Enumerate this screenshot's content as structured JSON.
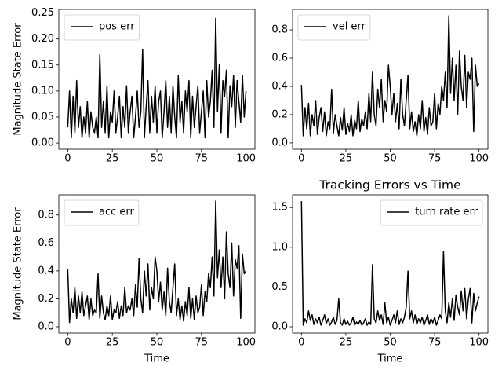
{
  "chart_data": [
    {
      "type": "line",
      "ylabel": "Magnitude State Error",
      "legend": "upper left",
      "xlim": [
        -5,
        105
      ],
      "ylim": [
        -0.012,
        0.257
      ],
      "xticks": [
        0,
        25,
        50,
        75,
        100
      ],
      "yticks": [
        {
          "value": 0,
          "label": "0.00"
        },
        0.05,
        {
          "value": 0.1,
          "label": "0.10"
        },
        0.15,
        {
          "value": 0.2,
          "label": "0.20"
        },
        0.25
      ],
      "x": [
        0,
        1,
        2,
        3,
        4,
        5,
        6,
        7,
        8,
        9,
        10,
        11,
        12,
        13,
        14,
        15,
        16,
        17,
        18,
        19,
        20,
        21,
        22,
        23,
        24,
        25,
        26,
        27,
        28,
        29,
        30,
        31,
        32,
        33,
        34,
        35,
        36,
        37,
        38,
        39,
        40,
        41,
        42,
        43,
        44,
        45,
        46,
        47,
        48,
        49,
        50,
        51,
        52,
        53,
        54,
        55,
        56,
        57,
        58,
        59,
        60,
        61,
        62,
        63,
        64,
        65,
        66,
        67,
        68,
        69,
        70,
        71,
        72,
        73,
        74,
        75,
        76,
        77,
        78,
        79,
        80,
        81,
        82,
        83,
        84,
        85,
        86,
        87,
        88,
        89,
        90,
        91,
        92,
        93,
        94,
        95,
        96,
        97,
        98,
        99,
        100
      ],
      "series": [
        {
          "name": "pos err",
          "color": "#000000",
          "values": [
            0.03,
            0.1,
            0.01,
            0.09,
            0.02,
            0.12,
            0.03,
            0.07,
            0.01,
            0.05,
            0.02,
            0.08,
            0.01,
            0.06,
            0.03,
            0.02,
            0.05,
            0.01,
            0.17,
            0.03,
            0.08,
            0.02,
            0.11,
            0.01,
            0.06,
            0.04,
            0.1,
            0.02,
            0.05,
            0.09,
            0.01,
            0.07,
            0.03,
            0.11,
            0.02,
            0.06,
            0.09,
            0.01,
            0.05,
            0.1,
            0.03,
            0.06,
            0.18,
            0.01,
            0.07,
            0.12,
            0.02,
            0.09,
            0.04,
            0.11,
            0.02,
            0.08,
            0.1,
            0.01,
            0.06,
            0.12,
            0.03,
            0.09,
            0.02,
            0.11,
            0.05,
            0.01,
            0.13,
            0.04,
            0.08,
            0.02,
            0.1,
            0.06,
            0.12,
            0.01,
            0.09,
            0.03,
            0.07,
            0.11,
            0.02,
            0.06,
            0.1,
            0.01,
            0.12,
            0.05,
            0.08,
            0.14,
            0.03,
            0.24,
            0.06,
            0.15,
            0.02,
            0.12,
            0.09,
            0.14,
            0.01,
            0.11,
            0.07,
            0.13,
            0.03,
            0.12,
            0.08,
            0.04,
            0.13,
            0.05,
            0.1
          ]
        }
      ]
    },
    {
      "type": "line",
      "legend": "upper left",
      "xlim": [
        -5,
        105
      ],
      "ylim": [
        -0.045,
        0.945
      ],
      "xticks": [
        0,
        25,
        50,
        75,
        100
      ],
      "yticks": [
        {
          "value": 0,
          "label": "0.0"
        },
        0.2,
        0.4,
        0.6,
        0.8
      ],
      "x": [
        0,
        1,
        2,
        3,
        4,
        5,
        6,
        7,
        8,
        9,
        10,
        11,
        12,
        13,
        14,
        15,
        16,
        17,
        18,
        19,
        20,
        21,
        22,
        23,
        24,
        25,
        26,
        27,
        28,
        29,
        30,
        31,
        32,
        33,
        34,
        35,
        36,
        37,
        38,
        39,
        40,
        41,
        42,
        43,
        44,
        45,
        46,
        47,
        48,
        49,
        50,
        51,
        52,
        53,
        54,
        55,
        56,
        57,
        58,
        59,
        60,
        61,
        62,
        63,
        64,
        65,
        66,
        67,
        68,
        69,
        70,
        71,
        72,
        73,
        74,
        75,
        76,
        77,
        78,
        79,
        80,
        81,
        82,
        83,
        84,
        85,
        86,
        87,
        88,
        89,
        90,
        91,
        92,
        93,
        94,
        95,
        96,
        97,
        98,
        99,
        100
      ],
      "series": [
        {
          "name": "vel err",
          "color": "#000000",
          "values": [
            0.41,
            0.05,
            0.25,
            0.1,
            0.28,
            0.05,
            0.2,
            0.12,
            0.3,
            0.06,
            0.18,
            0.25,
            0.08,
            0.22,
            0.05,
            0.15,
            0.1,
            0.38,
            0.07,
            0.2,
            0.12,
            0.05,
            0.18,
            0.09,
            0.25,
            0.06,
            0.14,
            0.08,
            0.2,
            0.05,
            0.16,
            0.1,
            0.3,
            0.08,
            0.17,
            0.12,
            0.22,
            0.1,
            0.35,
            0.15,
            0.5,
            0.2,
            0.12,
            0.38,
            0.25,
            0.45,
            0.15,
            0.3,
            0.22,
            0.55,
            0.4,
            0.2,
            0.35,
            0.15,
            0.28,
            0.1,
            0.45,
            0.2,
            0.12,
            0.3,
            0.48,
            0.1,
            0.22,
            0.08,
            0.15,
            0.05,
            0.2,
            0.1,
            0.3,
            0.08,
            0.18,
            0.06,
            0.25,
            0.12,
            0.15,
            0.35,
            0.1,
            0.28,
            0.2,
            0.4,
            0.3,
            0.5,
            0.25,
            0.9,
            0.35,
            0.6,
            0.3,
            0.55,
            0.2,
            0.65,
            0.4,
            0.3,
            0.62,
            0.25,
            0.5,
            0.45,
            0.6,
            0.08,
            0.55,
            0.4,
            0.42
          ]
        }
      ]
    },
    {
      "type": "line",
      "ylabel": "Magnitude State Error",
      "xlabel": "Time",
      "legend": "upper left",
      "xlim": [
        -5,
        105
      ],
      "ylim": [
        -0.045,
        0.945
      ],
      "xticks": [
        0,
        25,
        50,
        75,
        100
      ],
      "yticks": [
        {
          "value": 0,
          "label": "0.0"
        },
        0.2,
        0.4,
        0.6,
        0.8
      ],
      "x": [
        0,
        1,
        2,
        3,
        4,
        5,
        6,
        7,
        8,
        9,
        10,
        11,
        12,
        13,
        14,
        15,
        16,
        17,
        18,
        19,
        20,
        21,
        22,
        23,
        24,
        25,
        26,
        27,
        28,
        29,
        30,
        31,
        32,
        33,
        34,
        35,
        36,
        37,
        38,
        39,
        40,
        41,
        42,
        43,
        44,
        45,
        46,
        47,
        48,
        49,
        50,
        51,
        52,
        53,
        54,
        55,
        56,
        57,
        58,
        59,
        60,
        61,
        62,
        63,
        64,
        65,
        66,
        67,
        68,
        69,
        70,
        71,
        72,
        73,
        74,
        75,
        76,
        77,
        78,
        79,
        80,
        81,
        82,
        83,
        84,
        85,
        86,
        87,
        88,
        89,
        90,
        91,
        92,
        93,
        94,
        95,
        96,
        97,
        98,
        99,
        100
      ],
      "series": [
        {
          "name": "acc err",
          "color": "#000000",
          "values": [
            0.41,
            0.03,
            0.2,
            0.1,
            0.28,
            0.06,
            0.22,
            0.1,
            0.25,
            0.08,
            0.15,
            0.22,
            0.05,
            0.2,
            0.08,
            0.12,
            0.1,
            0.38,
            0.06,
            0.22,
            0.1,
            0.05,
            0.15,
            0.08,
            0.22,
            0.05,
            0.12,
            0.1,
            0.18,
            0.06,
            0.15,
            0.08,
            0.28,
            0.1,
            0.15,
            0.12,
            0.2,
            0.08,
            0.3,
            0.14,
            0.49,
            0.2,
            0.1,
            0.4,
            0.22,
            0.45,
            0.12,
            0.28,
            0.2,
            0.5,
            0.4,
            0.18,
            0.32,
            0.12,
            0.25,
            0.08,
            0.42,
            0.18,
            0.1,
            0.28,
            0.45,
            0.08,
            0.2,
            0.05,
            0.15,
            0.04,
            0.18,
            0.08,
            0.28,
            0.06,
            0.2,
            0.05,
            0.22,
            0.1,
            0.14,
            0.3,
            0.08,
            0.25,
            0.18,
            0.38,
            0.28,
            0.5,
            0.22,
            0.9,
            0.35,
            0.55,
            0.28,
            0.5,
            0.2,
            0.68,
            0.38,
            0.28,
            0.6,
            0.22,
            0.48,
            0.42,
            0.58,
            0.06,
            0.52,
            0.38,
            0.4
          ]
        }
      ]
    },
    {
      "type": "line",
      "title": "Tracking Errors vs Time",
      "xlabel": "Time",
      "legend": "upper right",
      "xlim": [
        -5,
        105
      ],
      "ylim": [
        -0.079,
        1.66
      ],
      "xticks": [
        0,
        25,
        50,
        75,
        100
      ],
      "yticks": [
        {
          "value": 0,
          "label": "0.0"
        },
        0.5,
        {
          "value": 1,
          "label": "1.0"
        },
        1.5
      ],
      "x": [
        0,
        1,
        2,
        3,
        4,
        5,
        6,
        7,
        8,
        9,
        10,
        11,
        12,
        13,
        14,
        15,
        16,
        17,
        18,
        19,
        20,
        21,
        22,
        23,
        24,
        25,
        26,
        27,
        28,
        29,
        30,
        31,
        32,
        33,
        34,
        35,
        36,
        37,
        38,
        39,
        40,
        41,
        42,
        43,
        44,
        45,
        46,
        47,
        48,
        49,
        50,
        51,
        52,
        53,
        54,
        55,
        56,
        57,
        58,
        59,
        60,
        61,
        62,
        63,
        64,
        65,
        66,
        67,
        68,
        69,
        70,
        71,
        72,
        73,
        74,
        75,
        76,
        77,
        78,
        79,
        80,
        81,
        82,
        83,
        84,
        85,
        86,
        87,
        88,
        89,
        90,
        91,
        92,
        93,
        94,
        95,
        96,
        97,
        98,
        99,
        100
      ],
      "series": [
        {
          "name": "turn rate err",
          "color": "#000000",
          "values": [
            1.58,
            0.02,
            0.1,
            0.05,
            0.2,
            0.08,
            0.15,
            0.03,
            0.1,
            0.05,
            0.12,
            0.02,
            0.08,
            0.15,
            0.04,
            0.1,
            0.02,
            0.06,
            0.12,
            0.03,
            0.08,
            0.35,
            0.05,
            0.02,
            0.1,
            0.03,
            0.07,
            0.02,
            0.05,
            0.12,
            0.02,
            0.06,
            0.03,
            0.08,
            0.02,
            0.05,
            0.1,
            0.02,
            0.06,
            0.03,
            0.78,
            0.1,
            0.05,
            0.2,
            0.08,
            0.15,
            0.03,
            0.3,
            0.05,
            0.12,
            0.02,
            0.08,
            0.15,
            0.05,
            0.2,
            0.03,
            0.1,
            0.05,
            0.12,
            0.25,
            0.7,
            0.1,
            0.2,
            0.05,
            0.15,
            0.03,
            0.1,
            0.05,
            0.12,
            0.02,
            0.08,
            0.15,
            0.03,
            0.1,
            0.05,
            0.12,
            0.02,
            0.08,
            0.15,
            0.1,
            0.95,
            0.2,
            0.05,
            0.3,
            0.12,
            0.35,
            0.08,
            0.4,
            0.25,
            0.15,
            0.45,
            0.2,
            0.48,
            0.1,
            0.35,
            0.48,
            0.05,
            0.42,
            0.2,
            0.3,
            0.38
          ]
        }
      ]
    }
  ]
}
